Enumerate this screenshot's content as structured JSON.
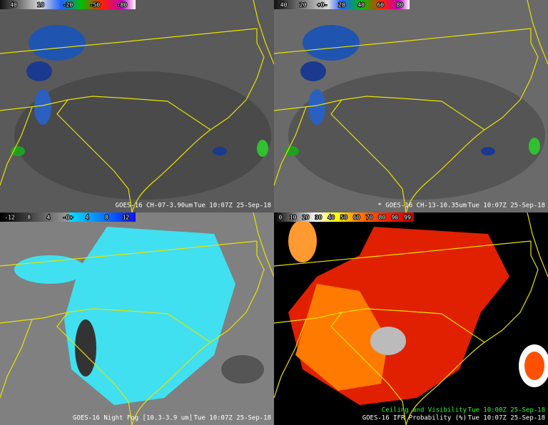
{
  "panels": [
    {
      "colorbar": [
        "40",
        "10",
        "-20",
        "-50",
        "-80"
      ],
      "captions": [
        {
          "product": "GOES-16 CH-07-3.90um",
          "time": "Tue 10:07Z 25-Sep-18"
        }
      ]
    },
    {
      "colorbar": [
        "40",
        "20",
        "+0-",
        "20",
        "40",
        "60",
        "80"
      ],
      "captions": [
        {
          "product": "* GOES-16 CH-13-10.35um",
          "time": "Tue 10:07Z 25-Sep-18"
        }
      ]
    },
    {
      "colorbar": [
        "-12",
        "8",
        "4",
        "-0+",
        "4",
        "8",
        "12"
      ],
      "captions": [
        {
          "product": "GOES-16 Night Fog [10.3-3.9 um]",
          "time": "Tue 10:07Z 25-Sep-18"
        }
      ]
    },
    {
      "colorbar": [
        "0",
        "10",
        "20",
        "30",
        "40",
        "50",
        "60",
        "70",
        "80",
        "90",
        "99"
      ],
      "captions": [
        {
          "product": "Ceiling and Visibility",
          "time": "Tue 10:00Z 25-Sep-18"
        },
        {
          "product": "GOES-16 IFR Probability (%)",
          "time": "Tue 10:07Z 25-Sep-18"
        }
      ]
    }
  ]
}
